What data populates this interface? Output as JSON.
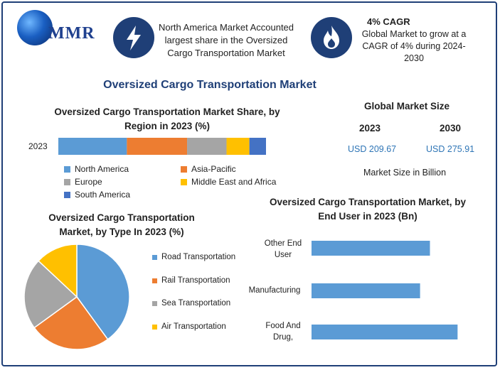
{
  "header": {
    "logo_text": "MMR",
    "box1_text": "North America Market Accounted largest share in the Oversized Cargo Transportation Market",
    "box2_title": "4% CAGR",
    "box2_text": "Global Market to grow at a CAGR of 4% during 2024-2030",
    "icon1": "lightning-icon",
    "icon2": "flame-icon"
  },
  "main_title": "Oversized Cargo Transportation Market",
  "global_market": {
    "title": "Global Market Size",
    "year_a": "2023",
    "year_b": "2030",
    "value_a": "USD 209.67",
    "value_b": "USD 275.91",
    "note": "Market Size in Billion"
  },
  "colors": {
    "blue": "#5b9bd5",
    "orange": "#ed7d31",
    "gray": "#a5a5a5",
    "yellow": "#ffc000",
    "dark_blue": "#4472c4",
    "title_blue": "#1f3f77"
  },
  "chart_data": [
    {
      "type": "bar",
      "orientation": "horizontal-stacked",
      "title": "Oversized Cargo Transportation Market Share, by Region in 2023 (%)",
      "categories": [
        "2023"
      ],
      "series": [
        {
          "name": "North America",
          "values": [
            33
          ],
          "color": "#5b9bd5"
        },
        {
          "name": "Asia-Pacific",
          "values": [
            29
          ],
          "color": "#ed7d31"
        },
        {
          "name": "Europe",
          "values": [
            19
          ],
          "color": "#a5a5a5"
        },
        {
          "name": "Middle East and Africa",
          "values": [
            11
          ],
          "color": "#ffc000"
        },
        {
          "name": "South America",
          "values": [
            8
          ],
          "color": "#4472c4"
        }
      ],
      "legend": "bottom"
    },
    {
      "type": "pie",
      "title": "Oversized Cargo Transportation Market, by Type In 2023 (%)",
      "categories": [
        "Road Transportation",
        "Rail Transportation",
        "Sea Transportation",
        "Air Transportation"
      ],
      "values": [
        40,
        25,
        22,
        13
      ],
      "colors": [
        "#5b9bd5",
        "#ed7d31",
        "#a5a5a5",
        "#ffc000"
      ],
      "legend": "right"
    },
    {
      "type": "bar",
      "orientation": "horizontal",
      "title": "Oversized Cargo Transportation Market, by End User in 2023 (Bn)",
      "categories": [
        "Other End User",
        "Manufacturing",
        "Food And Drug,"
      ],
      "values": [
        60,
        55,
        74
      ],
      "color": "#5b9bd5",
      "xlim": [
        0,
        80
      ]
    }
  ]
}
